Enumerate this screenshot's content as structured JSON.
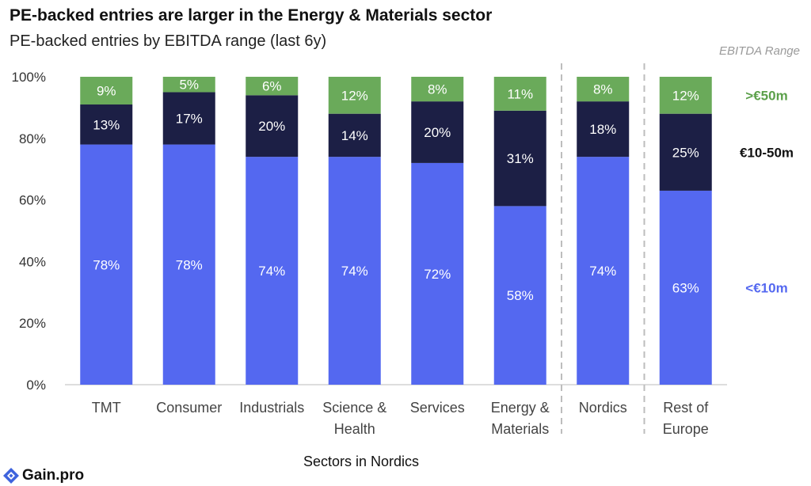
{
  "header": {
    "title": "PE-backed entries are larger in the Energy & Materials sector",
    "subtitle": "PE-backed entries by EBITDA range (last 6y)",
    "legend_title": "EBITDA Range"
  },
  "logo": {
    "text": "Gain.pro",
    "icon": "gain-pro-logo-icon"
  },
  "chart_data": {
    "type": "bar",
    "stacked": true,
    "categories": [
      "TMT",
      "Consumer",
      "Industrials",
      "Science & Health",
      "Services",
      "Energy & Materials",
      "Nordics",
      "Rest of Europe"
    ],
    "series": [
      {
        "name": "<€10m",
        "color": "#5468F0",
        "label_color": "#5468F0",
        "values": [
          78,
          78,
          74,
          74,
          72,
          58,
          74,
          63
        ]
      },
      {
        "name": "€10-50m",
        "color": "#1C1F45",
        "label_color": "#111111",
        "values": [
          13,
          17,
          20,
          14,
          20,
          31,
          18,
          25
        ]
      },
      {
        "name": ">€50m",
        "color": "#6AAA5A",
        "label_color": "#5BA04A",
        "values": [
          9,
          5,
          6,
          12,
          8,
          11,
          8,
          12
        ]
      }
    ],
    "xlabel": "Sectors in Nordics",
    "ylabel": "",
    "ylim": [
      0,
      100
    ],
    "yticks": [
      "0%",
      "20%",
      "40%",
      "60%",
      "80%",
      "100%"
    ],
    "separators_before": [
      6,
      7
    ],
    "grid": false,
    "legend_placement": "right"
  }
}
